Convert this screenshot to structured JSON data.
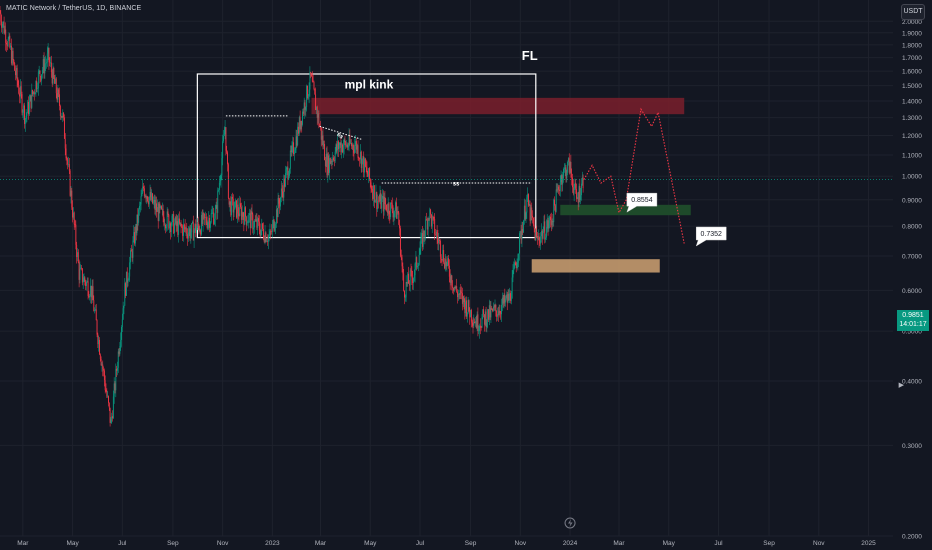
{
  "header": {
    "symbol_title": "MATIC Network / TetherUS, 1D, BINANCE",
    "currency_button": "USDT"
  },
  "last_price": {
    "value": "0.9851",
    "countdown": "14:01:17",
    "color": "#089981"
  },
  "annotations": {
    "fl_label": "FL",
    "mpl_kink_label": "mpl kink",
    "ss_label_1": "ss",
    "ss_label_2": "ss",
    "target_1": "0.8554",
    "target_2": "0.7352"
  },
  "colors": {
    "background": "#131722",
    "grid": "#1e222d",
    "up": "#089981",
    "down": "#f23645",
    "projection": "#f23645",
    "supply_zone": "#7a1f2b",
    "demand_zone_green": "#1e4a2a",
    "demand_zone_orange": "#c59a6e"
  },
  "chart_data": {
    "type": "candlestick",
    "title": "MATIC Network / TetherUS, 1D, BINANCE",
    "xlabel": "",
    "ylabel": "",
    "y_scale": "log",
    "ylim": [
      0.2,
      2.2
    ],
    "x_range": [
      "2022-02-01",
      "2025-01-31"
    ],
    "y_ticks": [
      0.2,
      0.3,
      0.4,
      0.5,
      0.6,
      0.7,
      0.8,
      0.9,
      1.0,
      1.1,
      1.2,
      1.3,
      1.4,
      1.5,
      1.6,
      1.7,
      1.8,
      1.9,
      2.0
    ],
    "y_tick_labels": [
      "0.2000",
      "0.3000",
      "0.4000",
      "0.5000",
      "0.6000",
      "0.7000",
      "0.8000",
      "0.9000",
      "1.0000",
      "1.1000",
      "1.2000",
      "1.3000",
      "1.4000",
      "1.5000",
      "1.6000",
      "1.7000",
      "1.8000",
      "1.9000",
      "2.0000"
    ],
    "x_ticks": [
      {
        "date": "2022-03-01",
        "label": "Mar"
      },
      {
        "date": "2022-05-01",
        "label": "May"
      },
      {
        "date": "2022-07-01",
        "label": "Jul"
      },
      {
        "date": "2022-09-01",
        "label": "Sep"
      },
      {
        "date": "2022-11-01",
        "label": "Nov"
      },
      {
        "date": "2023-01-01",
        "label": "2023"
      },
      {
        "date": "2023-03-01",
        "label": "Mar"
      },
      {
        "date": "2023-05-01",
        "label": "May"
      },
      {
        "date": "2023-07-01",
        "label": "Jul"
      },
      {
        "date": "2023-09-01",
        "label": "Sep"
      },
      {
        "date": "2023-11-01",
        "label": "Nov"
      },
      {
        "date": "2024-01-01",
        "label": "2024"
      },
      {
        "date": "2024-03-01",
        "label": "Mar"
      },
      {
        "date": "2024-05-01",
        "label": "May"
      },
      {
        "date": "2024-07-01",
        "label": "Jul"
      },
      {
        "date": "2024-09-01",
        "label": "Sep"
      },
      {
        "date": "2024-11-01",
        "label": "Nov"
      },
      {
        "date": "2025-01-01",
        "label": "2025"
      }
    ],
    "series": [
      {
        "price_path": [
          {
            "x": "2022-02-01",
            "y": 2.1
          },
          {
            "x": "2022-02-15",
            "y": 1.75
          },
          {
            "x": "2022-03-05",
            "y": 1.3
          },
          {
            "x": "2022-03-20",
            "y": 1.55
          },
          {
            "x": "2022-04-02",
            "y": 1.7
          },
          {
            "x": "2022-04-20",
            "y": 1.3
          },
          {
            "x": "2022-05-10",
            "y": 0.65
          },
          {
            "x": "2022-05-25",
            "y": 0.6
          },
          {
            "x": "2022-06-18",
            "y": 0.33
          },
          {
            "x": "2022-07-05",
            "y": 0.6
          },
          {
            "x": "2022-07-28",
            "y": 0.95
          },
          {
            "x": "2022-08-15",
            "y": 0.85
          },
          {
            "x": "2022-09-06",
            "y": 0.8
          },
          {
            "x": "2022-09-25",
            "y": 0.78
          },
          {
            "x": "2022-10-25",
            "y": 0.85
          },
          {
            "x": "2022-11-05",
            "y": 1.25
          },
          {
            "x": "2022-11-10",
            "y": 0.88
          },
          {
            "x": "2022-11-25",
            "y": 0.85
          },
          {
            "x": "2022-12-15",
            "y": 0.8
          },
          {
            "x": "2022-12-30",
            "y": 0.76
          },
          {
            "x": "2023-01-15",
            "y": 0.95
          },
          {
            "x": "2023-02-01",
            "y": 1.2
          },
          {
            "x": "2023-02-18",
            "y": 1.55
          },
          {
            "x": "2023-03-10",
            "y": 1.05
          },
          {
            "x": "2023-03-25",
            "y": 1.15
          },
          {
            "x": "2023-04-15",
            "y": 1.15
          },
          {
            "x": "2023-05-10",
            "y": 0.9
          },
          {
            "x": "2023-06-05",
            "y": 0.85
          },
          {
            "x": "2023-06-12",
            "y": 0.6
          },
          {
            "x": "2023-06-25",
            "y": 0.65
          },
          {
            "x": "2023-07-13",
            "y": 0.85
          },
          {
            "x": "2023-07-28",
            "y": 0.72
          },
          {
            "x": "2023-08-15",
            "y": 0.6
          },
          {
            "x": "2023-09-10",
            "y": 0.52
          },
          {
            "x": "2023-10-05",
            "y": 0.55
          },
          {
            "x": "2023-10-20",
            "y": 0.58
          },
          {
            "x": "2023-11-10",
            "y": 0.9
          },
          {
            "x": "2023-11-22",
            "y": 0.75
          },
          {
            "x": "2023-12-10",
            "y": 0.82
          },
          {
            "x": "2023-12-22",
            "y": 1.0
          },
          {
            "x": "2024-01-01",
            "y": 1.05
          },
          {
            "x": "2024-01-10",
            "y": 0.9
          },
          {
            "x": "2024-01-18",
            "y": 0.9851
          }
        ]
      }
    ],
    "drawings": {
      "rectangle_fl": {
        "x1": "2022-10-01",
        "x2": "2023-11-20",
        "y1": 0.76,
        "y2": 1.58,
        "label": "FL"
      },
      "supply_zone": {
        "x1": "2023-02-18",
        "x2": "2024-05-20",
        "y1": 1.32,
        "y2": 1.42
      },
      "demand_zone_green": {
        "x1": "2023-12-20",
        "x2": "2024-05-28",
        "y1": 0.84,
        "y2": 0.88
      },
      "demand_zone_orange": {
        "x1": "2023-11-15",
        "x2": "2024-04-20",
        "y1": 0.65,
        "y2": 0.69
      },
      "level_line_1": {
        "x1": "2022-11-05",
        "x2": "2023-01-20",
        "y": 1.31
      },
      "level_line_2": {
        "x1": "2023-05-15",
        "x2": "2023-11-15",
        "y": 0.97
      },
      "diagonal_ss": {
        "x1": "2023-02-28",
        "y1": 1.25,
        "x2": "2023-04-20",
        "y2": 1.18
      },
      "projection_path": [
        {
          "x": "2024-01-18",
          "y": 0.9851
        },
        {
          "x": "2024-01-28",
          "y": 1.05
        },
        {
          "x": "2024-02-08",
          "y": 0.97
        },
        {
          "x": "2024-02-20",
          "y": 1.0
        },
        {
          "x": "2024-03-01",
          "y": 0.85
        },
        {
          "x": "2024-03-10",
          "y": 0.9
        },
        {
          "x": "2024-03-28",
          "y": 1.35
        },
        {
          "x": "2024-04-10",
          "y": 1.25
        },
        {
          "x": "2024-04-18",
          "y": 1.33
        },
        {
          "x": "2024-05-20",
          "y": 0.74
        }
      ],
      "target_callouts": [
        {
          "x": "2024-02-25",
          "y": 0.8554
        },
        {
          "x": "2024-05-20",
          "y": 0.7352
        }
      ]
    }
  }
}
